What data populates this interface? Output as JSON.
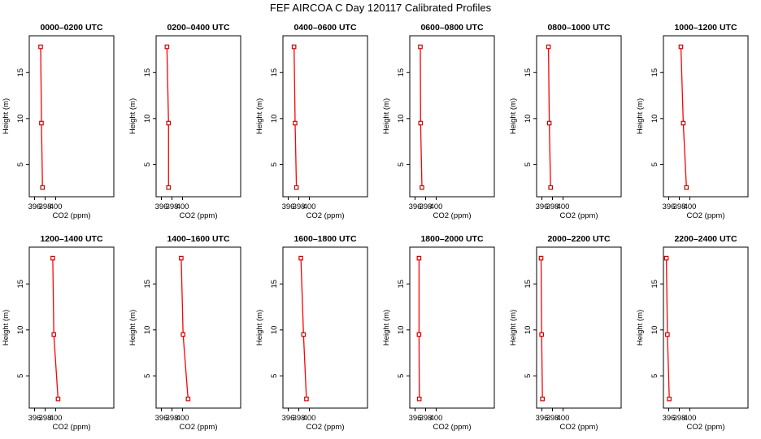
{
  "figure": {
    "title": "FEF AIRCOA C  Day 120117  Calibrated Profiles",
    "line_color": "#ff0000",
    "marker_color": "#cc0000"
  },
  "chart_data": [
    {
      "type": "line",
      "title": "0000–0200 UTC",
      "xlabel": "CO2 (ppm)",
      "ylabel": "Height (m)",
      "xlim": [
        395,
        411
      ],
      "ylim": [
        1.5,
        19
      ],
      "xticks": [
        396,
        398,
        400
      ],
      "yticks": [
        5,
        10,
        15
      ],
      "series": [
        {
          "x": [
            397.15,
            397.3,
            397.5
          ],
          "y": [
            17.8,
            9.5,
            2.5
          ]
        }
      ]
    },
    {
      "type": "line",
      "title": "0200–0400 UTC",
      "xlabel": "CO2 (ppm)",
      "ylabel": "Height (m)",
      "xlim": [
        395,
        411
      ],
      "ylim": [
        1.5,
        19
      ],
      "xticks": [
        396,
        398,
        400
      ],
      "yticks": [
        5,
        10,
        15
      ],
      "series": [
        {
          "x": [
            397.05,
            397.35,
            397.35
          ],
          "y": [
            17.8,
            9.5,
            2.5
          ]
        }
      ]
    },
    {
      "type": "line",
      "title": "0400–0600 UTC",
      "xlabel": "CO2 (ppm)",
      "ylabel": "Height (m)",
      "xlim": [
        395,
        411
      ],
      "ylim": [
        1.5,
        19
      ],
      "xticks": [
        396,
        398,
        400
      ],
      "yticks": [
        5,
        10,
        15
      ],
      "series": [
        {
          "x": [
            397.1,
            397.3,
            397.55
          ],
          "y": [
            17.8,
            9.5,
            2.5
          ]
        }
      ]
    },
    {
      "type": "line",
      "title": "0600–0800 UTC",
      "xlabel": "CO2 (ppm)",
      "ylabel": "Height (m)",
      "xlim": [
        395,
        411
      ],
      "ylim": [
        1.5,
        19
      ],
      "xticks": [
        396,
        398,
        400
      ],
      "yticks": [
        5,
        10,
        15
      ],
      "series": [
        {
          "x": [
            397.0,
            397.05,
            397.3
          ],
          "y": [
            17.8,
            9.5,
            2.5
          ]
        }
      ]
    },
    {
      "type": "line",
      "title": "0800–1000 UTC",
      "xlabel": "CO2 (ppm)",
      "ylabel": "Height (m)",
      "xlim": [
        395,
        411
      ],
      "ylim": [
        1.5,
        19
      ],
      "xticks": [
        396,
        398,
        400
      ],
      "yticks": [
        5,
        10,
        15
      ],
      "series": [
        {
          "x": [
            397.25,
            397.4,
            397.65
          ],
          "y": [
            17.8,
            9.5,
            2.5
          ]
        }
      ]
    },
    {
      "type": "line",
      "title": "1000–1200 UTC",
      "xlabel": "CO2 (ppm)",
      "ylabel": "Height (m)",
      "xlim": [
        395,
        411
      ],
      "ylim": [
        1.5,
        19
      ],
      "xticks": [
        396,
        398,
        400
      ],
      "yticks": [
        5,
        10,
        15
      ],
      "series": [
        {
          "x": [
            398.3,
            398.75,
            399.35
          ],
          "y": [
            17.8,
            9.5,
            2.5
          ]
        }
      ]
    },
    {
      "type": "line",
      "title": "1200–1400 UTC",
      "xlabel": "CO2 (ppm)",
      "ylabel": "Height (m)",
      "xlim": [
        395,
        411
      ],
      "ylim": [
        1.5,
        19
      ],
      "xticks": [
        396,
        398,
        400
      ],
      "yticks": [
        5,
        10,
        15
      ],
      "series": [
        {
          "x": [
            399.45,
            399.65,
            400.45
          ],
          "y": [
            17.8,
            9.5,
            2.5
          ]
        }
      ]
    },
    {
      "type": "line",
      "title": "1400–1600 UTC",
      "xlabel": "CO2 (ppm)",
      "ylabel": "Height (m)",
      "xlim": [
        395,
        411
      ],
      "ylim": [
        1.5,
        19
      ],
      "xticks": [
        396,
        398,
        400
      ],
      "yticks": [
        5,
        10,
        15
      ],
      "series": [
        {
          "x": [
            399.75,
            400.1,
            401.05
          ],
          "y": [
            17.8,
            9.5,
            2.5
          ]
        }
      ]
    },
    {
      "type": "line",
      "title": "1600–1800 UTC",
      "xlabel": "CO2 (ppm)",
      "ylabel": "Height (m)",
      "xlim": [
        395,
        411
      ],
      "ylim": [
        1.5,
        19
      ],
      "xticks": [
        396,
        398,
        400
      ],
      "yticks": [
        5,
        10,
        15
      ],
      "series": [
        {
          "x": [
            398.4,
            398.9,
            399.45
          ],
          "y": [
            17.8,
            9.5,
            2.5
          ]
        }
      ]
    },
    {
      "type": "line",
      "title": "1800–2000 UTC",
      "xlabel": "CO2 (ppm)",
      "ylabel": "Height (m)",
      "xlim": [
        395,
        411
      ],
      "ylim": [
        1.5,
        19
      ],
      "xticks": [
        396,
        398,
        400
      ],
      "yticks": [
        5,
        10,
        15
      ],
      "series": [
        {
          "x": [
            396.75,
            396.75,
            396.8
          ],
          "y": [
            17.8,
            9.5,
            2.5
          ]
        }
      ]
    },
    {
      "type": "line",
      "title": "2000–2200 UTC",
      "xlabel": "CO2 (ppm)",
      "ylabel": "Height (m)",
      "xlim": [
        395,
        411
      ],
      "ylim": [
        1.5,
        19
      ],
      "xticks": [
        396,
        398,
        400
      ],
      "yticks": [
        5,
        10,
        15
      ],
      "series": [
        {
          "x": [
            395.85,
            395.95,
            396.1
          ],
          "y": [
            17.8,
            9.5,
            2.5
          ]
        }
      ]
    },
    {
      "type": "line",
      "title": "2200–2400 UTC",
      "xlabel": "CO2 (ppm)",
      "ylabel": "Height (m)",
      "xlim": [
        395,
        411
      ],
      "ylim": [
        1.5,
        19
      ],
      "xticks": [
        396,
        398,
        400
      ],
      "yticks": [
        5,
        10,
        15
      ],
      "series": [
        {
          "x": [
            395.55,
            395.75,
            396.1
          ],
          "y": [
            17.8,
            9.5,
            2.5
          ]
        }
      ]
    }
  ]
}
